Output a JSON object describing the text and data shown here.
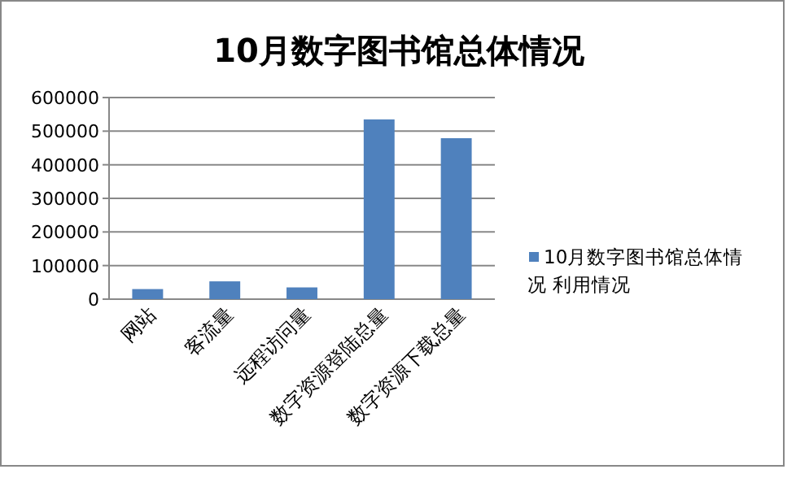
{
  "chart_data": {
    "type": "bar",
    "title": "10月数字图书馆总体情况",
    "categories": [
      "网站",
      "客流量",
      "远程访问量",
      "数字资源登陆总量",
      "数字资源下载总量"
    ],
    "series": [
      {
        "name": "10月数字图书馆总体情况 利用情况",
        "color": "#4f81bd",
        "values": [
          30000,
          53000,
          35000,
          535000,
          479000
        ]
      }
    ],
    "ylim": [
      0,
      600000
    ],
    "yticks": [
      0,
      100000,
      200000,
      300000,
      400000,
      500000,
      600000
    ],
    "grid": "y",
    "legend": "right"
  }
}
